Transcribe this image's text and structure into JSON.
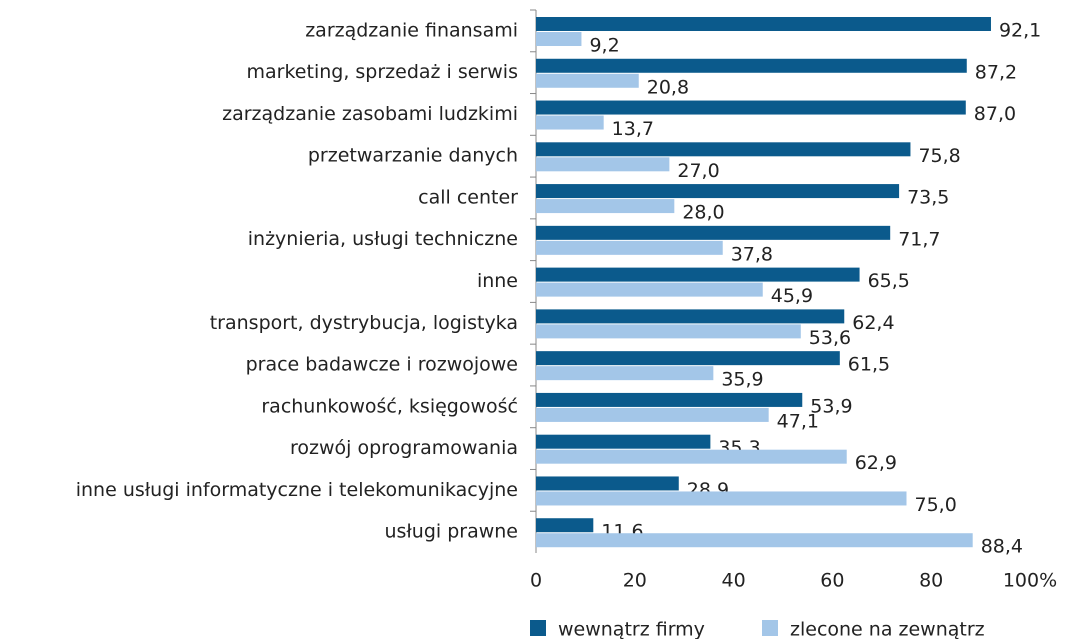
{
  "chart_data": {
    "type": "barh",
    "categories": [
      "zarządzanie finansami",
      "marketing, sprzedaż i serwis",
      "zarządzanie zasobami ludzkimi",
      "przetwarzanie danych",
      "call center",
      "inżynieria, usługi techniczne",
      "inne",
      "transport, dystrybucja, logistyka",
      "prace badawcze i rozwojowe",
      "rachunkowość, księgowość",
      "rozwój oprogramowania",
      "inne usługi informatyczne i telekomunikacyjne",
      "usługi prawne"
    ],
    "series": [
      {
        "name": "wewnątrz firmy",
        "color": "#0b5a8c",
        "values": [
          92.1,
          87.2,
          87.0,
          75.8,
          73.5,
          71.7,
          65.5,
          62.4,
          61.5,
          53.9,
          35.3,
          28.9,
          11.6
        ],
        "value_labels": [
          "92,1",
          "87,2",
          "87,0",
          "75,8",
          "73,5",
          "71,7",
          "65,5",
          "62,4",
          "61,5",
          "53,9",
          "35,3",
          "28,9",
          "11,6"
        ]
      },
      {
        "name": "zlecone na zewnątrz",
        "color": "#a3c6e8",
        "values": [
          9.2,
          20.8,
          13.7,
          27.0,
          28.0,
          37.8,
          45.9,
          53.6,
          35.9,
          47.1,
          62.9,
          75.0,
          88.4
        ],
        "value_labels": [
          "9,2",
          "20,8",
          "13,7",
          "27,0",
          "28,0",
          "37,8",
          "45,9",
          "53,6",
          "35,9",
          "47,1",
          "62,9",
          "75,0",
          "88,4"
        ]
      }
    ],
    "xlim": [
      0,
      100
    ],
    "xticks": [
      0,
      20,
      40,
      60,
      80,
      {
        "value": 100,
        "label": "100%"
      }
    ],
    "legend": "bottom"
  }
}
